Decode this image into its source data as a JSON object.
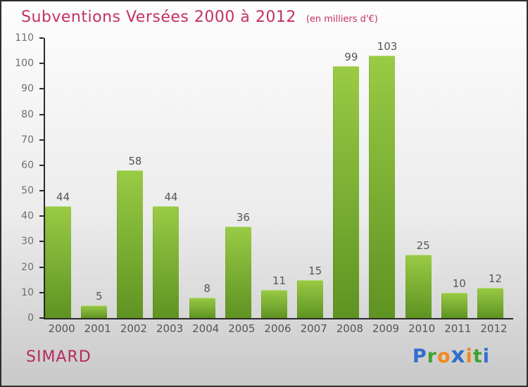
{
  "header": {
    "title": "Subventions Versées 2000 à 2012",
    "subtitle": "(en milliers d'€)"
  },
  "colors": {
    "title": "#c43063",
    "brand": "#b52a5e",
    "axis": "#2b2b2b",
    "tick_label": "#6e6e6e",
    "value_label": "#555555"
  },
  "chart_data": {
    "type": "bar",
    "title": "Subventions Versées 2000 à 2012",
    "subtitle": "(en milliers d'€)",
    "xlabel": "",
    "ylabel": "",
    "categories": [
      "2000",
      "2001",
      "2002",
      "2003",
      "2004",
      "2005",
      "2006",
      "2007",
      "2008",
      "2009",
      "2010",
      "2011",
      "2012"
    ],
    "values": [
      44,
      5,
      58,
      44,
      8,
      36,
      11,
      15,
      99,
      103,
      25,
      10,
      12
    ],
    "ylim": [
      0,
      110
    ],
    "ytick_step": 10,
    "grid": false,
    "legend": null,
    "bar_color_top": "#99cb45",
    "bar_color_bottom": "#5f9322"
  },
  "footer": {
    "brand": "SIMARD",
    "logo": [
      {
        "ch": "P",
        "color": "#2e6ed0",
        "big": false
      },
      {
        "ch": "r",
        "color": "#3fa331",
        "big": false
      },
      {
        "ch": "o",
        "color": "#f1881c",
        "big": false
      },
      {
        "ch": "x",
        "color": "#2e6ed0",
        "big": true
      },
      {
        "ch": "i",
        "color": "#f1881c",
        "big": false
      },
      {
        "ch": "t",
        "color": "#3fa331",
        "big": false
      },
      {
        "ch": "i",
        "color": "#2e6ed0",
        "big": false
      }
    ]
  }
}
